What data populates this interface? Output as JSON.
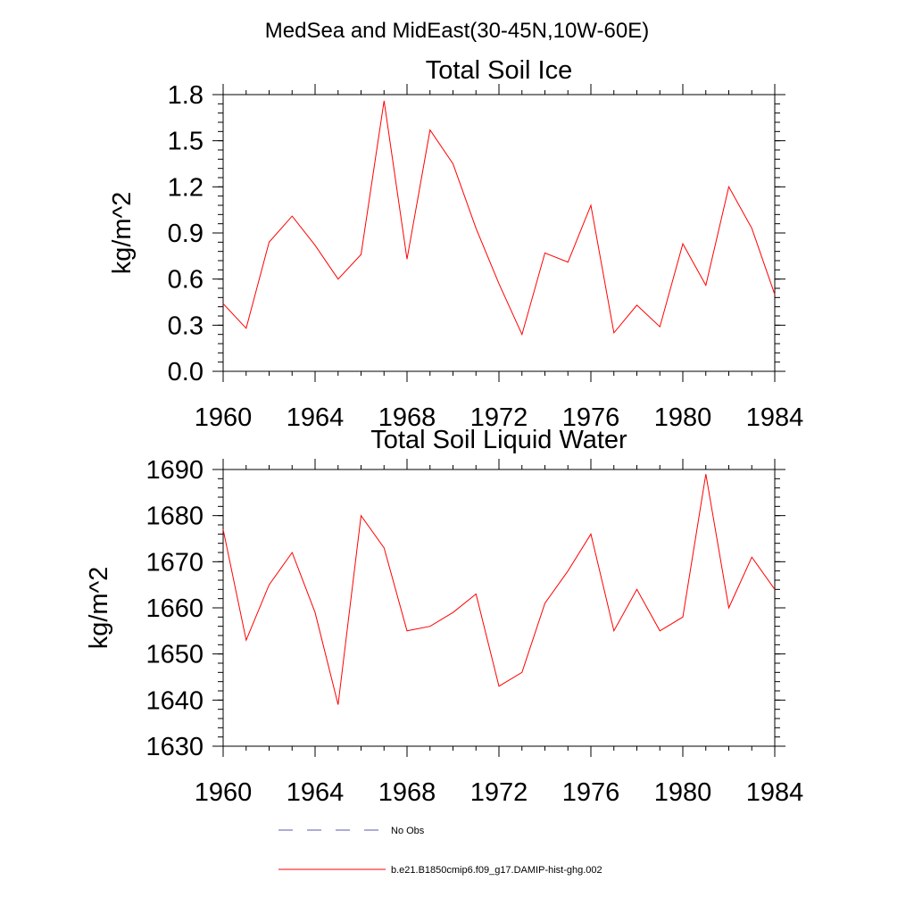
{
  "page_title": "MedSea and MidEast(30-45N,10W-60E)",
  "line_color": "#ff0000",
  "obs_line_color": "#5a5aa8",
  "legend": [
    {
      "label": "No Obs",
      "style": "dashed",
      "color": "#5a5aa8"
    },
    {
      "label": "b.e21.B1850cmip6.f09_g17.DAMIP-hist-ghg.002",
      "style": "solid",
      "color": "#ff0000"
    }
  ],
  "chart_data": [
    {
      "type": "line",
      "title": "Total Soil Ice",
      "xlabel": "",
      "ylabel": "kg/m^2",
      "xlim": [
        1960,
        1984
      ],
      "ylim": [
        0.0,
        1.8
      ],
      "x_ticks": [
        1960,
        1964,
        1968,
        1972,
        1976,
        1980,
        1984
      ],
      "x_tick_labels": [
        "1960",
        "1964",
        "1968",
        "1972",
        "1976",
        "1980",
        "1984"
      ],
      "y_ticks": [
        0.0,
        0.3,
        0.6,
        0.9,
        1.2,
        1.5,
        1.8
      ],
      "y_tick_labels": [
        "0.0",
        "0.3",
        "0.6",
        "0.9",
        "1.2",
        "1.5",
        "1.8"
      ],
      "grid": false,
      "series": [
        {
          "x": [
            1960,
            1961,
            1962,
            1963,
            1964,
            1965,
            1966,
            1967,
            1968,
            1969,
            1970,
            1971,
            1972,
            1973,
            1974,
            1975,
            1976,
            1977,
            1978,
            1979,
            1980,
            1981,
            1982,
            1983,
            1984
          ],
          "values": [
            0.44,
            0.28,
            0.84,
            1.01,
            0.82,
            0.6,
            0.76,
            1.76,
            0.73,
            1.57,
            1.35,
            0.93,
            0.57,
            0.24,
            0.77,
            0.71,
            1.08,
            0.25,
            0.43,
            0.29,
            0.83,
            0.56,
            1.2,
            0.93,
            0.5
          ]
        }
      ]
    },
    {
      "type": "line",
      "title": "Total Soil Liquid Water",
      "xlabel": "",
      "ylabel": "kg/m^2",
      "xlim": [
        1960,
        1984
      ],
      "ylim": [
        1630,
        1690
      ],
      "x_ticks": [
        1960,
        1964,
        1968,
        1972,
        1976,
        1980,
        1984
      ],
      "x_tick_labels": [
        "1960",
        "1964",
        "1968",
        "1972",
        "1976",
        "1980",
        "1984"
      ],
      "y_ticks": [
        1630,
        1640,
        1650,
        1660,
        1670,
        1680,
        1690
      ],
      "y_tick_labels": [
        "1630",
        "1640",
        "1650",
        "1660",
        "1670",
        "1680",
        "1690"
      ],
      "grid": false,
      "series": [
        {
          "x": [
            1960,
            1961,
            1962,
            1963,
            1964,
            1965,
            1966,
            1967,
            1968,
            1969,
            1970,
            1971,
            1972,
            1973,
            1974,
            1975,
            1976,
            1977,
            1978,
            1979,
            1980,
            1981,
            1982,
            1983,
            1984
          ],
          "values": [
            1677,
            1653,
            1665,
            1672,
            1659,
            1639,
            1680,
            1673,
            1655,
            1656,
            1659,
            1663,
            1643,
            1646,
            1661,
            1668,
            1676,
            1655,
            1664,
            1655,
            1658,
            1689,
            1660,
            1671,
            1664
          ]
        }
      ]
    }
  ]
}
